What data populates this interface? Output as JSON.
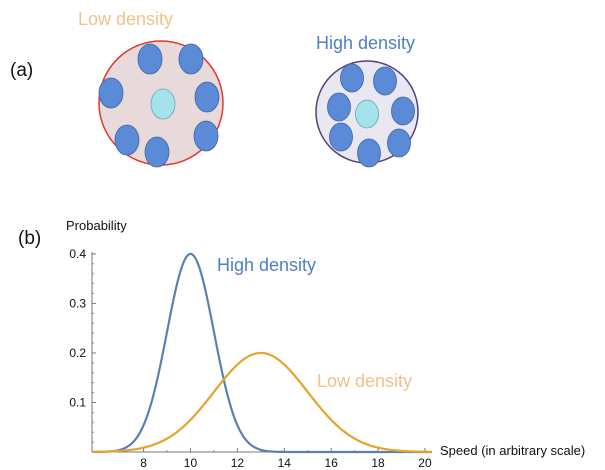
{
  "panel_a": {
    "label": "(a)",
    "low_density_label": "Low density",
    "high_density_label": "High density",
    "colors": {
      "low_label": "#f5c08a",
      "high_label": "#4f7fc4",
      "low_fill": "#e8dada",
      "low_stroke": "#e0392b",
      "high_fill": "#e9e7f0",
      "high_stroke": "#5a3f78",
      "particle_fill": "#5b8ad6",
      "particle_stroke": "#3d64a8",
      "center_fill": "#a6e2ec",
      "center_stroke": "#5ca9b8"
    }
  },
  "panel_b": {
    "label": "(b)"
  },
  "chart_data": {
    "type": "line",
    "title": "",
    "xlabel": "Speed (in arbitrary scale)",
    "ylabel": "Probability",
    "xlim": [
      5.8,
      20.3
    ],
    "ylim": [
      0,
      0.42
    ],
    "xticks": [
      8,
      10,
      12,
      14,
      16,
      18,
      20
    ],
    "yticks": [
      0.1,
      0.2,
      0.3,
      0.4
    ],
    "ytick_labels": [
      "0.1",
      "0.2",
      "0.3",
      "0.4"
    ],
    "xtick_labels": [
      "8",
      "10",
      "12",
      "14",
      "16",
      "18",
      "20"
    ],
    "grid": false,
    "series": [
      {
        "name": "High density",
        "color": "#5b7fb5",
        "label_color": "#4f7fc4",
        "distribution": "normal",
        "mean": 10,
        "sd": 1,
        "peak": 0.4
      },
      {
        "name": "Low density",
        "color": "#e3a52a",
        "label_color": "#f5c08a",
        "distribution": "normal",
        "mean": 13,
        "sd": 2,
        "peak": 0.2
      }
    ]
  }
}
